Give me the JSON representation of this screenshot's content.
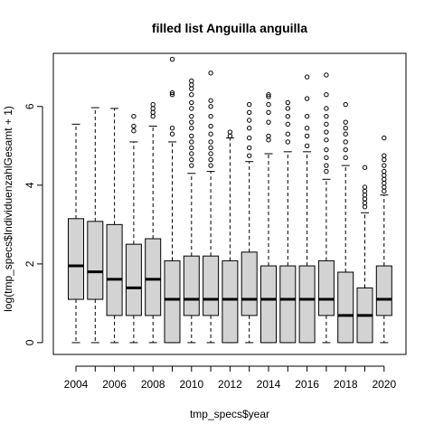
{
  "chart_data": {
    "type": "boxplot",
    "title": "filled list Anguilla anguilla",
    "xlabel": "tmp_specs$year",
    "ylabel": "log(tmp_specs$IndividuenzahlGesamt + 1)",
    "ylim": [
      -0.3,
      7.35
    ],
    "y_ticks": [
      0,
      2,
      4,
      6
    ],
    "x_tick_labels": [
      "2004",
      "2006",
      "2008",
      "2010",
      "2012",
      "2014",
      "2016",
      "2018",
      "2020"
    ],
    "colors": {
      "box_fill": "#d3d3d3",
      "line": "#000000"
    },
    "grid": false,
    "categories": [
      "2004",
      "2005",
      "2006",
      "2007",
      "2008",
      "2009",
      "2010",
      "2011",
      "2012",
      "2013",
      "2014",
      "2015",
      "2016",
      "2017",
      "2018",
      "2019",
      "2020"
    ],
    "boxes": [
      {
        "year": "2004",
        "min": 0,
        "q1": 1.1,
        "median": 1.95,
        "q3": 3.15,
        "max": 5.55,
        "outliers": []
      },
      {
        "year": "2005",
        "min": 0,
        "q1": 1.1,
        "median": 1.8,
        "q3": 3.08,
        "max": 5.97,
        "outliers": []
      },
      {
        "year": "2006",
        "min": 0,
        "q1": 0.69,
        "median": 1.61,
        "q3": 3.0,
        "max": 5.95,
        "outliers": []
      },
      {
        "year": "2007",
        "min": 0,
        "q1": 0.69,
        "median": 1.39,
        "q3": 2.5,
        "max": 5.1,
        "outliers": [
          5.38,
          5.5,
          5.75
        ]
      },
      {
        "year": "2008",
        "min": 0,
        "q1": 0.69,
        "median": 1.61,
        "q3": 2.64,
        "max": 5.5,
        "outliers": [
          5.75,
          5.85,
          5.95,
          6.05
        ]
      },
      {
        "year": "2009",
        "min": 0,
        "q1": 0,
        "median": 1.1,
        "q3": 2.08,
        "max": 5.1,
        "outliers": [
          5.3,
          5.45,
          6.3,
          6.35,
          7.2
        ]
      },
      {
        "year": "2010",
        "min": 0,
        "q1": 0.69,
        "median": 1.1,
        "q3": 2.2,
        "max": 4.3,
        "outliers": [
          4.5,
          4.65,
          4.8,
          4.95,
          5.1,
          5.25,
          5.45,
          5.6,
          5.75,
          5.95,
          6.1,
          6.3,
          6.45,
          6.55,
          6.65
        ]
      },
      {
        "year": "2011",
        "min": 0,
        "q1": 0.69,
        "median": 1.1,
        "q3": 2.2,
        "max": 4.35,
        "outliers": [
          4.5,
          4.65,
          4.8,
          4.95,
          5.1,
          5.3,
          5.5,
          5.75,
          6.0,
          6.15,
          6.85
        ]
      },
      {
        "year": "2012",
        "min": 0,
        "q1": 0,
        "median": 1.1,
        "q3": 2.08,
        "max": 5.2,
        "outliers": [
          5.25,
          5.35
        ]
      },
      {
        "year": "2013",
        "min": 0,
        "q1": 0.69,
        "median": 1.1,
        "q3": 2.3,
        "max": 4.6,
        "outliers": [
          4.75,
          4.95,
          5.2,
          5.45,
          5.65,
          5.85,
          6.05
        ]
      },
      {
        "year": "2014",
        "min": 0,
        "q1": 0,
        "median": 1.1,
        "q3": 1.95,
        "max": 4.8,
        "outliers": [
          5.15,
          5.25,
          5.6,
          5.85,
          6.05,
          6.25,
          6.3
        ]
      },
      {
        "year": "2015",
        "min": 0,
        "q1": 0,
        "median": 1.1,
        "q3": 1.95,
        "max": 4.85,
        "outliers": [
          5.1,
          5.3,
          5.55,
          5.75,
          5.95,
          6.1
        ]
      },
      {
        "year": "2016",
        "min": 0,
        "q1": 0,
        "median": 1.1,
        "q3": 1.95,
        "max": 4.85,
        "outliers": [
          5.0,
          5.25,
          5.45,
          5.75,
          6.2,
          6.75
        ]
      },
      {
        "year": "2017",
        "min": 0,
        "q1": 0.69,
        "median": 1.1,
        "q3": 2.08,
        "max": 4.15,
        "outliers": [
          4.35,
          4.5,
          4.7,
          4.9,
          5.15,
          5.35,
          5.55,
          5.75,
          5.95,
          6.3,
          6.8
        ]
      },
      {
        "year": "2018",
        "min": 0,
        "q1": 0,
        "median": 0.69,
        "q3": 1.79,
        "max": 4.5,
        "outliers": [
          4.7,
          4.9,
          5.1,
          5.3,
          5.45,
          5.6,
          6.05
        ]
      },
      {
        "year": "2019",
        "min": 0,
        "q1": 0,
        "median": 0.69,
        "q3": 1.39,
        "max": 3.3,
        "outliers": [
          3.45,
          3.55,
          3.65,
          3.75,
          3.85,
          3.95,
          4.45
        ]
      },
      {
        "year": "2020",
        "min": 0,
        "q1": 0.69,
        "median": 1.1,
        "q3": 1.95,
        "max": 3.75,
        "outliers": [
          3.85,
          3.95,
          4.05,
          4.15,
          4.25,
          4.35,
          4.5,
          4.65,
          4.75,
          5.2
        ]
      }
    ]
  }
}
